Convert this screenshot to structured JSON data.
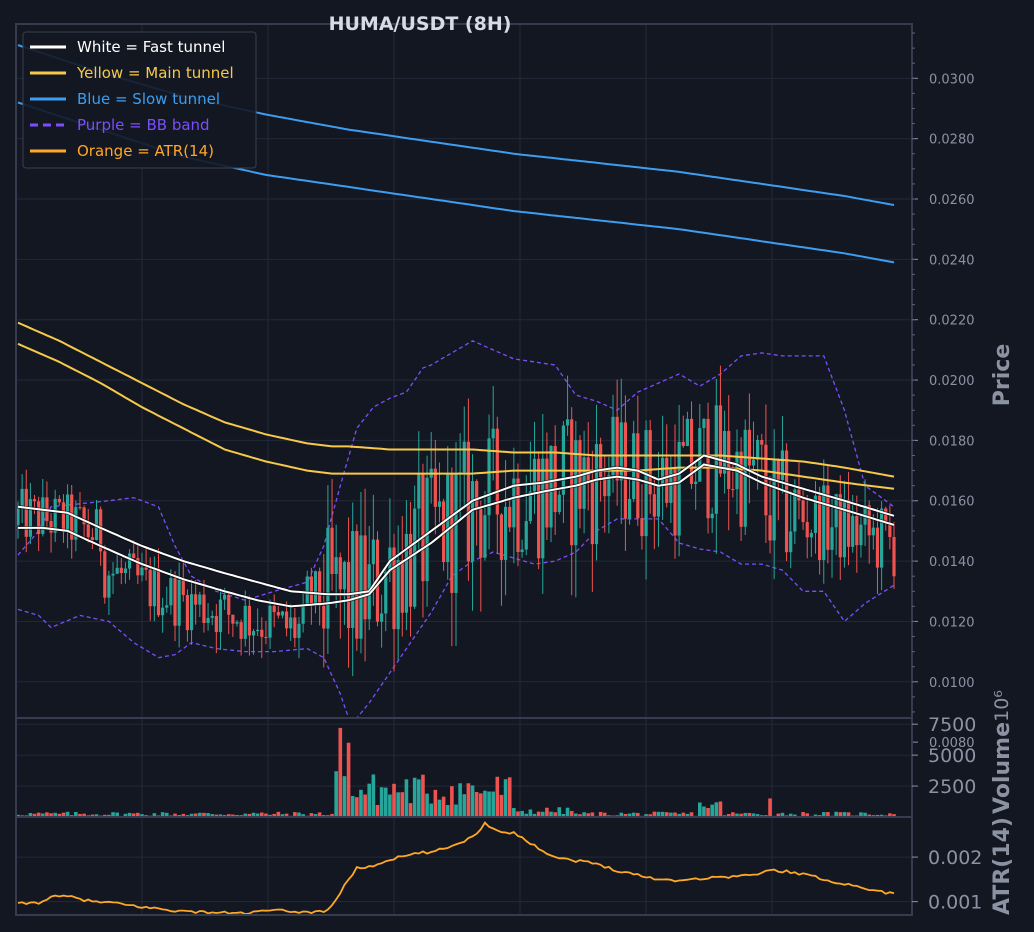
{
  "chart_data": [
    {
      "type": "candlestick",
      "title": "HUMA/USDT (8H)",
      "ylabel": "Price",
      "ylim": [
        0.0088,
        0.0318
      ],
      "yticks": [
        "0.0300",
        "0.0280",
        "0.0260",
        "0.0240",
        "0.0220",
        "0.0200",
        "0.0180",
        "0.0160",
        "0.0140",
        "0.0120",
        "0.0100",
        "0.0080"
      ],
      "grid": true,
      "legend_position": "top-left",
      "legend": [
        {
          "label": "White = Fast tunnel",
          "color": "#ffffff",
          "style": "solid"
        },
        {
          "label": "Yellow = Main tunnel",
          "color": "#f7c948",
          "style": "solid"
        },
        {
          "label": "Blue = Slow tunnel",
          "color": "#3d9df0",
          "style": "solid"
        },
        {
          "label": "Purple = BB band",
          "color": "#7c4dff",
          "style": "dashed"
        },
        {
          "label": "Orange = ATR(14)",
          "color": "#ffa726",
          "style": "solid"
        }
      ],
      "colors": {
        "up": "#26a69a",
        "down": "#ef5350",
        "background": "#131722",
        "grid": "#232838"
      },
      "series": [
        {
          "name": "Fast tunnel",
          "color": "#ffffff",
          "lines": [
            {
              "x": [
                0,
                6,
                12,
                20,
                30,
                40,
                50,
                58,
                66,
                75,
                80,
                85,
                90,
                100,
                110,
                120,
                127,
                135,
                140,
                145,
                150,
                155,
                160,
                166,
                174,
                180,
                190,
                200,
                212
              ],
              "y": [
                0.0158,
                0.0157,
                0.0156,
                0.0151,
                0.0145,
                0.014,
                0.0136,
                0.0133,
                0.013,
                0.0129,
                0.0129,
                0.013,
                0.014,
                0.015,
                0.016,
                0.0165,
                0.0166,
                0.0168,
                0.017,
                0.0171,
                0.017,
                0.0167,
                0.0169,
                0.0175,
                0.0172,
                0.0168,
                0.0164,
                0.016,
                0.0155
              ]
            },
            {
              "x": [
                0,
                6,
                12,
                20,
                30,
                40,
                50,
                58,
                66,
                75,
                80,
                85,
                90,
                100,
                110,
                120,
                127,
                135,
                140,
                145,
                150,
                155,
                160,
                166,
                174,
                180,
                190,
                200,
                212
              ],
              "y": [
                0.0151,
                0.0151,
                0.015,
                0.0145,
                0.0139,
                0.0134,
                0.013,
                0.0127,
                0.0125,
                0.0126,
                0.0127,
                0.0129,
                0.0137,
                0.0146,
                0.0157,
                0.0161,
                0.0163,
                0.0165,
                0.0167,
                0.0168,
                0.0167,
                0.0165,
                0.0166,
                0.0172,
                0.017,
                0.0166,
                0.0161,
                0.0157,
                0.0152
              ]
            }
          ]
        },
        {
          "name": "Main tunnel",
          "color": "#f7c948",
          "lines": [
            {
              "x": [
                0,
                10,
                20,
                30,
                40,
                50,
                60,
                70,
                76,
                80,
                90,
                100,
                110,
                120,
                130,
                140,
                150,
                160,
                170,
                180,
                190,
                200,
                212
              ],
              "y": [
                0.0219,
                0.0213,
                0.0206,
                0.0199,
                0.0192,
                0.0186,
                0.0182,
                0.0179,
                0.0178,
                0.0178,
                0.0177,
                0.0177,
                0.0177,
                0.0176,
                0.0176,
                0.0175,
                0.0175,
                0.0175,
                0.0175,
                0.0174,
                0.0173,
                0.0171,
                0.0168
              ]
            },
            {
              "x": [
                0,
                10,
                20,
                30,
                40,
                50,
                60,
                70,
                76,
                80,
                90,
                100,
                110,
                120,
                130,
                140,
                150,
                160,
                170,
                180,
                190,
                200,
                212
              ],
              "y": [
                0.0212,
                0.0206,
                0.0199,
                0.0191,
                0.0184,
                0.0177,
                0.0173,
                0.017,
                0.0169,
                0.0169,
                0.0169,
                0.0169,
                0.0169,
                0.017,
                0.017,
                0.017,
                0.017,
                0.0171,
                0.0171,
                0.017,
                0.0168,
                0.0166,
                0.0164
              ]
            }
          ]
        },
        {
          "name": "Slow tunnel",
          "color": "#3d9df0",
          "lines": [
            {
              "x": [
                0,
                20,
                40,
                60,
                80,
                100,
                120,
                140,
                160,
                180,
                200,
                212
              ],
              "y": [
                0.0311,
                0.0302,
                0.0294,
                0.0288,
                0.0283,
                0.0279,
                0.0275,
                0.0272,
                0.0269,
                0.0265,
                0.0261,
                0.0258
              ]
            },
            {
              "x": [
                0,
                20,
                40,
                60,
                80,
                100,
                120,
                140,
                160,
                180,
                200,
                212
              ],
              "y": [
                0.0292,
                0.0283,
                0.0274,
                0.0268,
                0.0264,
                0.026,
                0.0256,
                0.0253,
                0.025,
                0.0246,
                0.0242,
                0.0239
              ]
            }
          ]
        },
        {
          "name": "BB band",
          "color": "#7c4dff",
          "dashed": true,
          "lines": [
            {
              "x": [
                0,
                5,
                8,
                15,
                22,
                28,
                34,
                38,
                42,
                48,
                55,
                62,
                70,
                74,
                78,
                82,
                86,
                90,
                94,
                98,
                100,
                105,
                110,
                115,
                120,
                125,
                130,
                135,
                140,
                145,
                150,
                155,
                160,
                165,
                170,
                175,
                180,
                185,
                190,
                195,
                200,
                205,
                212
              ],
              "y": [
                0.0142,
                0.015,
                0.0158,
                0.0159,
                0.016,
                0.0161,
                0.0158,
                0.0145,
                0.0135,
                0.013,
                0.0127,
                0.013,
                0.0133,
                0.0145,
                0.0165,
                0.0184,
                0.0191,
                0.0194,
                0.0196,
                0.0204,
                0.0205,
                0.0209,
                0.0213,
                0.021,
                0.0207,
                0.0206,
                0.0205,
                0.0195,
                0.0193,
                0.019,
                0.0196,
                0.0199,
                0.0202,
                0.0198,
                0.0202,
                0.0208,
                0.0209,
                0.0208,
                0.0208,
                0.0208,
                0.019,
                0.0165,
                0.0158
              ]
            },
            {
              "x": [
                0,
                5,
                8,
                15,
                22,
                28,
                34,
                38,
                42,
                48,
                55,
                62,
                70,
                74,
                78,
                80,
                82,
                85,
                90,
                95,
                100,
                105,
                110,
                115,
                120,
                125,
                130,
                135,
                140,
                145,
                150,
                155,
                160,
                165,
                170,
                175,
                180,
                185,
                190,
                195,
                200,
                205,
                212
              ],
              "y": [
                0.0124,
                0.0122,
                0.0118,
                0.0122,
                0.012,
                0.0113,
                0.0108,
                0.0109,
                0.0113,
                0.0111,
                0.011,
                0.011,
                0.0111,
                0.0108,
                0.0096,
                0.0088,
                0.0088,
                0.0093,
                0.0103,
                0.0113,
                0.0123,
                0.0135,
                0.014,
                0.0143,
                0.0141,
                0.0139,
                0.014,
                0.0143,
                0.015,
                0.0154,
                0.0154,
                0.0154,
                0.0146,
                0.0144,
                0.0143,
                0.0139,
                0.0139,
                0.0137,
                0.013,
                0.013,
                0.012,
                0.0126,
                0.0132
              ]
            }
          ]
        }
      ]
    },
    {
      "type": "bar",
      "ylabel": "Volume",
      "scale_label": "10⁶",
      "ylim": [
        0,
        8000
      ],
      "yticks": [
        "7500",
        "5000",
        "2500"
      ]
    },
    {
      "type": "line",
      "ylabel": "ATR(14)",
      "ylim": [
        0.0007,
        0.0029
      ],
      "yticks": [
        "0.002",
        "0.001"
      ],
      "series": [
        {
          "name": "ATR(14)",
          "color": "#ffa726",
          "x": [
            0,
            5,
            8,
            12,
            18,
            22,
            30,
            40,
            50,
            56,
            60,
            65,
            70,
            75,
            78,
            80,
            82,
            86,
            90,
            95,
            98,
            100,
            105,
            110,
            113,
            115,
            118,
            120,
            125,
            130,
            135,
            140,
            145,
            150,
            155,
            160,
            165,
            170,
            178,
            182,
            186,
            190,
            195,
            200,
            205,
            210,
            212
          ],
          "y": [
            0.00095,
            0.00098,
            0.0011,
            0.00112,
            0.001,
            0.00098,
            0.00088,
            0.00078,
            0.00075,
            0.00074,
            0.0008,
            0.00079,
            0.00076,
            0.0008,
            0.0012,
            0.0015,
            0.00175,
            0.0018,
            0.00195,
            0.00205,
            0.0021,
            0.0021,
            0.00225,
            0.00245,
            0.00275,
            0.00265,
            0.00255,
            0.00255,
            0.00225,
            0.002,
            0.00192,
            0.00185,
            0.0017,
            0.0016,
            0.0015,
            0.00148,
            0.00152,
            0.00155,
            0.0016,
            0.0017,
            0.00168,
            0.00162,
            0.0015,
            0.0014,
            0.0013,
            0.0012,
            0.00121
          ]
        }
      ]
    }
  ]
}
